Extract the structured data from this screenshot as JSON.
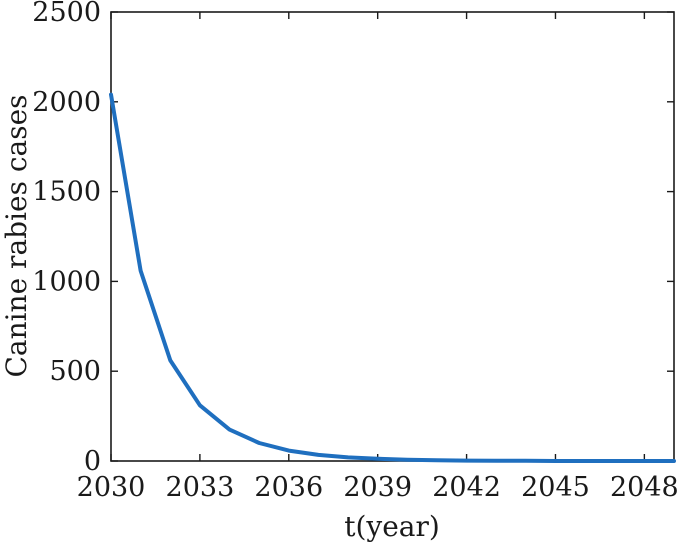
{
  "chart_data": {
    "type": "line",
    "title": "",
    "xlabel": "t(year)",
    "ylabel": "Canine rabies cases",
    "xlim": [
      2030,
      2049
    ],
    "ylim": [
      0,
      2500
    ],
    "xticks": [
      2030,
      2033,
      2036,
      2039,
      2042,
      2045,
      2048
    ],
    "yticks": [
      0,
      500,
      1000,
      1500,
      2000,
      2500
    ],
    "grid": false,
    "legend": "none",
    "line_color": "#1f6fbf",
    "series": [
      {
        "x": [
          2030,
          2031,
          2032,
          2033,
          2034,
          2035,
          2036,
          2037,
          2038,
          2039,
          2040,
          2041,
          2042,
          2043,
          2044,
          2045,
          2046,
          2047,
          2048,
          2049
        ],
        "values": [
          2040,
          1060,
          560,
          310,
          175,
          100,
          58,
          34,
          20,
          12,
          7,
          4,
          2,
          1,
          1,
          0,
          0,
          0,
          0,
          0
        ]
      }
    ]
  }
}
